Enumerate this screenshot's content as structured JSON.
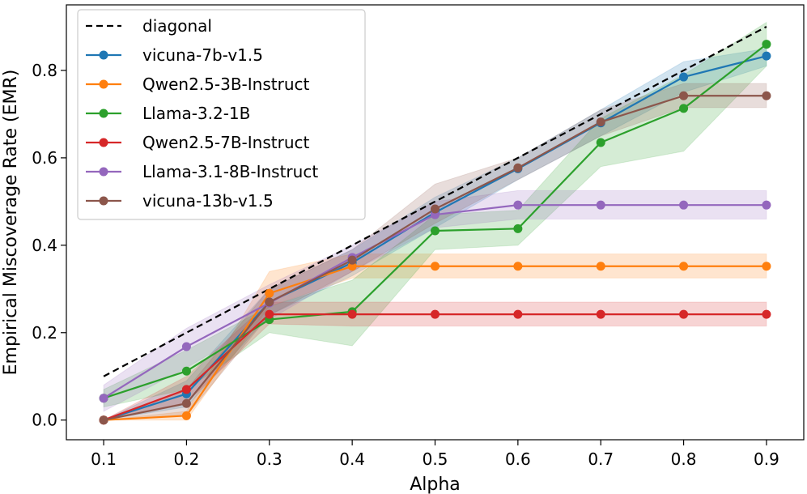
{
  "chart_data": {
    "type": "line",
    "title": "",
    "xlabel": "Alpha",
    "ylabel": "Empirical Miscoverage Rate (EMR)",
    "x": [
      0.1,
      0.2,
      0.3,
      0.4,
      0.5,
      0.6,
      0.7,
      0.8,
      0.9
    ],
    "x_ticks": [
      "0.1",
      "0.2",
      "0.3",
      "0.4",
      "0.5",
      "0.6",
      "0.7",
      "0.8",
      "0.9"
    ],
    "y_ticks": [
      "0.0",
      "0.2",
      "0.4",
      "0.6",
      "0.8"
    ],
    "xlim": [
      0.055,
      0.945
    ],
    "ylim": [
      -0.045,
      0.95
    ],
    "grid": false,
    "legend_position": "top-left",
    "diagonal": {
      "name": "diagonal",
      "color": "#000000",
      "style": "dashed",
      "x": [
        0.1,
        0.9
      ],
      "y": [
        0.1,
        0.9
      ]
    },
    "series": [
      {
        "name": "vicuna-7b-v1.5",
        "color": "#1f77b4",
        "values": [
          0.0,
          0.06,
          0.27,
          0.36,
          0.475,
          0.575,
          0.68,
          0.785,
          0.833
        ],
        "lower": [
          0.0,
          0.03,
          0.24,
          0.33,
          0.44,
          0.55,
          0.65,
          0.75,
          0.81
        ],
        "upper": [
          0.0,
          0.09,
          0.3,
          0.39,
          0.51,
          0.6,
          0.71,
          0.82,
          0.85
        ]
      },
      {
        "name": "Qwen2.5-3B-Instruct",
        "color": "#ff7f0e",
        "values": [
          0.0,
          0.01,
          0.29,
          0.352,
          0.352,
          0.352,
          0.352,
          0.352,
          0.352
        ],
        "lower": [
          0.0,
          0.0,
          0.26,
          0.325,
          0.325,
          0.325,
          0.325,
          0.325,
          0.325
        ],
        "upper": [
          0.0,
          0.02,
          0.34,
          0.38,
          0.38,
          0.38,
          0.38,
          0.38,
          0.38
        ]
      },
      {
        "name": "Llama-3.2-1B",
        "color": "#2ca02c",
        "values": [
          0.05,
          0.112,
          0.23,
          0.248,
          0.433,
          0.438,
          0.635,
          0.713,
          0.86
        ],
        "lower": [
          0.03,
          0.07,
          0.2,
          0.17,
          0.39,
          0.4,
          0.58,
          0.615,
          0.81
        ],
        "upper": [
          0.07,
          0.16,
          0.26,
          0.32,
          0.47,
          0.48,
          0.69,
          0.79,
          0.91
        ]
      },
      {
        "name": "Qwen2.5-7B-Instruct",
        "color": "#d62728",
        "values": [
          0.0,
          0.07,
          0.242,
          0.242,
          0.242,
          0.242,
          0.242,
          0.242,
          0.242
        ],
        "lower": [
          0.0,
          0.04,
          0.22,
          0.215,
          0.215,
          0.215,
          0.215,
          0.215,
          0.215
        ],
        "upper": [
          0.0,
          0.1,
          0.27,
          0.27,
          0.27,
          0.27,
          0.27,
          0.27,
          0.27
        ]
      },
      {
        "name": "Llama-3.1-8B-Instruct",
        "color": "#9467bd",
        "values": [
          0.05,
          0.168,
          0.268,
          0.372,
          0.47,
          0.492,
          0.492,
          0.492,
          0.492
        ],
        "lower": [
          0.02,
          0.12,
          0.23,
          0.34,
          0.44,
          0.46,
          0.46,
          0.46,
          0.46
        ],
        "upper": [
          0.08,
          0.21,
          0.31,
          0.4,
          0.5,
          0.525,
          0.525,
          0.525,
          0.525
        ]
      },
      {
        "name": "vicuna-13b-v1.5",
        "color": "#8c564b",
        "values": [
          0.0,
          0.038,
          0.27,
          0.366,
          0.483,
          0.577,
          0.682,
          0.742,
          0.742
        ],
        "lower": [
          0.0,
          0.01,
          0.24,
          0.34,
          0.45,
          0.55,
          0.65,
          0.715,
          0.715
        ],
        "upper": [
          0.0,
          0.07,
          0.3,
          0.39,
          0.54,
          0.6,
          0.71,
          0.77,
          0.77
        ]
      }
    ]
  }
}
